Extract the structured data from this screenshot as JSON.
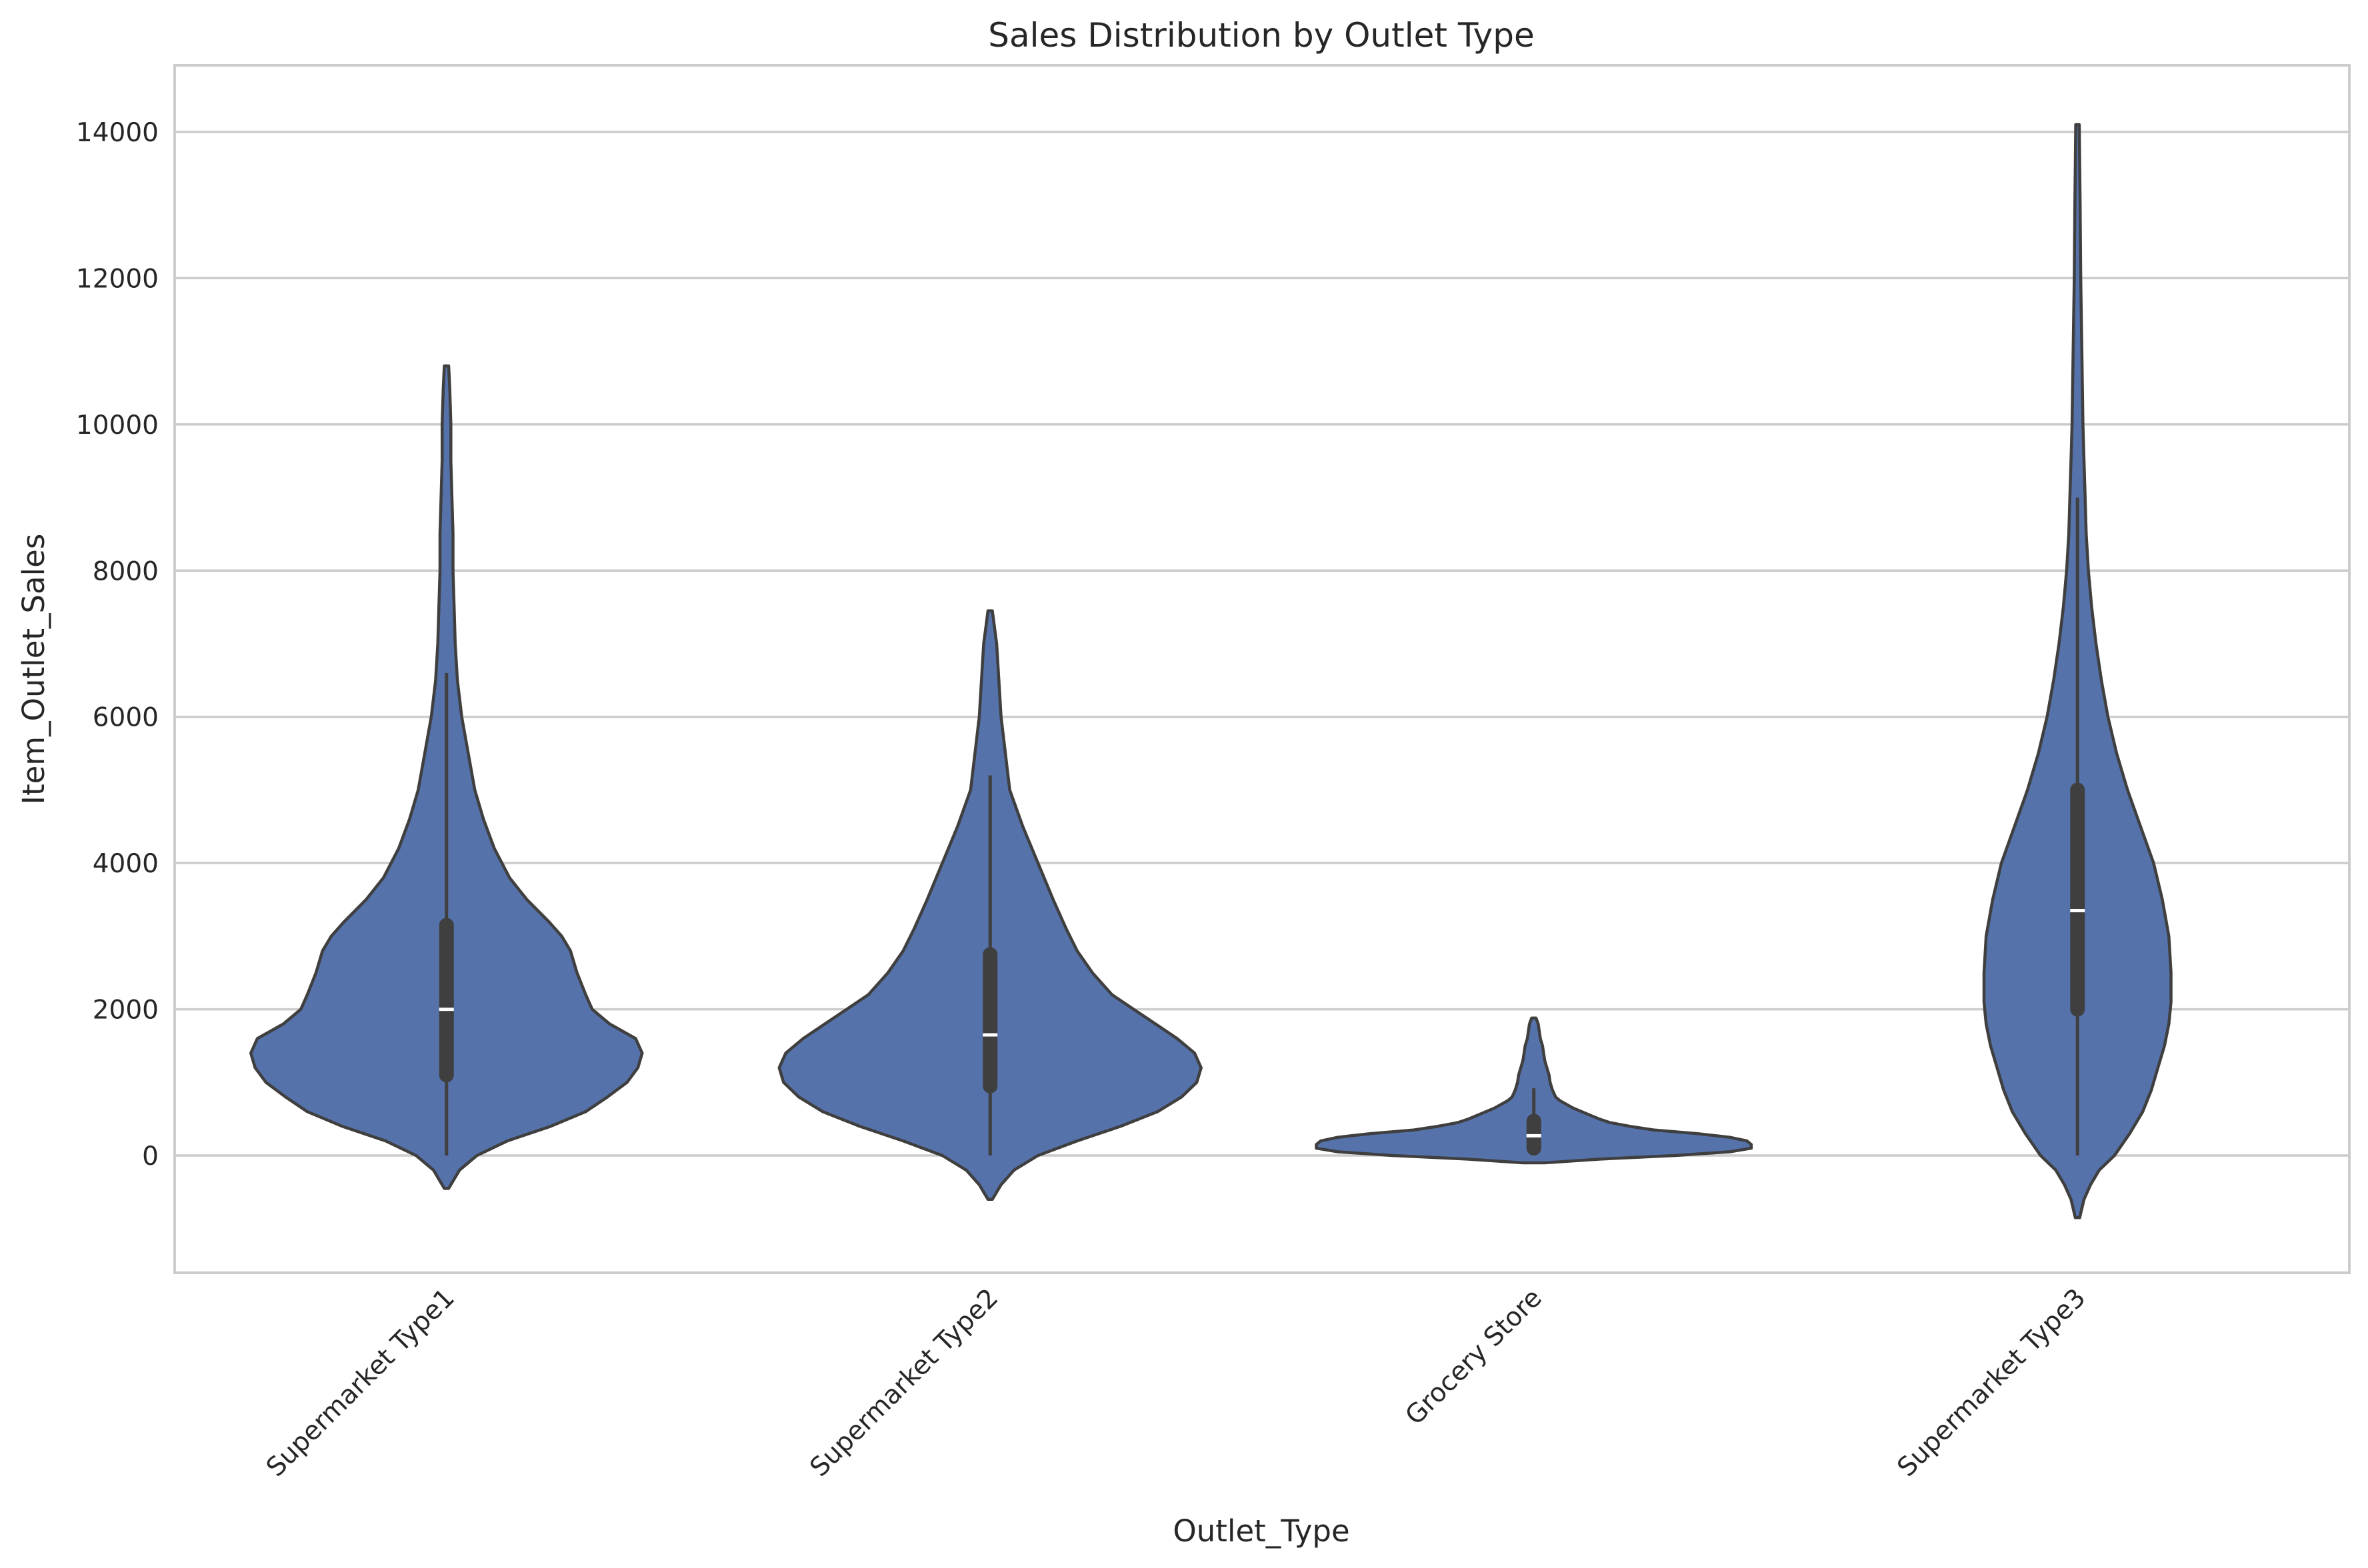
{
  "chart_data": {
    "type": "violin",
    "title": "Sales Distribution by Outlet Type",
    "xlabel": "Outlet_Type",
    "ylabel": "Item_Outlet_Sales",
    "categories": [
      "Supermarket Type1",
      "Supermarket Type2",
      "Grocery Store",
      "Supermarket Type3"
    ],
    "ylim": [
      -1600,
      15000
    ],
    "yticks": [
      0,
      2000,
      4000,
      6000,
      8000,
      10000,
      12000,
      14000
    ],
    "grid": "horizontal",
    "colors": {
      "fill": "#5572ab",
      "edge": "#3f3f3f",
      "box": "#3f3f3f",
      "median": "#ffffff",
      "grid": "#cccccc"
    },
    "violins": [
      {
        "category": "Supermarket Type1",
        "quartiles": [
          1100,
          2000,
          3150
        ],
        "whiskers": [
          0,
          6600
        ],
        "profile": [
          [
            -450,
            0.01
          ],
          [
            -200,
            0.06
          ],
          [
            0,
            0.14
          ],
          [
            200,
            0.28
          ],
          [
            400,
            0.48
          ],
          [
            600,
            0.64
          ],
          [
            800,
            0.74
          ],
          [
            1000,
            0.83
          ],
          [
            1200,
            0.88
          ],
          [
            1400,
            0.9
          ],
          [
            1600,
            0.87
          ],
          [
            1800,
            0.75
          ],
          [
            2000,
            0.67
          ],
          [
            2200,
            0.64
          ],
          [
            2500,
            0.6
          ],
          [
            2800,
            0.57
          ],
          [
            3000,
            0.53
          ],
          [
            3200,
            0.47
          ],
          [
            3500,
            0.37
          ],
          [
            3800,
            0.29
          ],
          [
            4200,
            0.22
          ],
          [
            4600,
            0.17
          ],
          [
            5000,
            0.13
          ],
          [
            5500,
            0.1
          ],
          [
            6000,
            0.07
          ],
          [
            6500,
            0.05
          ],
          [
            7000,
            0.04
          ],
          [
            7500,
            0.035
          ],
          [
            8000,
            0.03
          ],
          [
            8500,
            0.03
          ],
          [
            9000,
            0.025
          ],
          [
            9500,
            0.02
          ],
          [
            10000,
            0.02
          ],
          [
            10500,
            0.015
          ],
          [
            10800,
            0.01
          ]
        ]
      },
      {
        "category": "Supermarket Type2",
        "quartiles": [
          950,
          1650,
          2750
        ],
        "whiskers": [
          0,
          5200
        ],
        "profile": [
          [
            -600,
            0.01
          ],
          [
            -400,
            0.05
          ],
          [
            -200,
            0.11
          ],
          [
            0,
            0.22
          ],
          [
            200,
            0.4
          ],
          [
            400,
            0.6
          ],
          [
            600,
            0.77
          ],
          [
            800,
            0.88
          ],
          [
            1000,
            0.95
          ],
          [
            1200,
            0.97
          ],
          [
            1400,
            0.94
          ],
          [
            1600,
            0.86
          ],
          [
            1800,
            0.76
          ],
          [
            2000,
            0.66
          ],
          [
            2200,
            0.56
          ],
          [
            2500,
            0.47
          ],
          [
            2800,
            0.4
          ],
          [
            3100,
            0.35
          ],
          [
            3500,
            0.29
          ],
          [
            4000,
            0.22
          ],
          [
            4500,
            0.15
          ],
          [
            5000,
            0.09
          ],
          [
            5500,
            0.07
          ],
          [
            6000,
            0.05
          ],
          [
            6500,
            0.04
          ],
          [
            7000,
            0.03
          ],
          [
            7450,
            0.01
          ]
        ]
      },
      {
        "category": "Grocery Store",
        "quartiles": [
          100,
          270,
          470
        ],
        "whiskers": [
          0,
          920
        ],
        "profile": [
          [
            -100,
            0.05
          ],
          [
            -50,
            0.3
          ],
          [
            0,
            0.65
          ],
          [
            50,
            0.9
          ],
          [
            100,
            1.0
          ],
          [
            150,
            1.0
          ],
          [
            200,
            0.98
          ],
          [
            250,
            0.9
          ],
          [
            300,
            0.75
          ],
          [
            350,
            0.55
          ],
          [
            400,
            0.44
          ],
          [
            450,
            0.35
          ],
          [
            500,
            0.3
          ],
          [
            550,
            0.26
          ],
          [
            600,
            0.22
          ],
          [
            650,
            0.18
          ],
          [
            700,
            0.15
          ],
          [
            750,
            0.12
          ],
          [
            800,
            0.1
          ],
          [
            900,
            0.085
          ],
          [
            1000,
            0.075
          ],
          [
            1100,
            0.07
          ],
          [
            1200,
            0.06
          ],
          [
            1300,
            0.05
          ],
          [
            1400,
            0.045
          ],
          [
            1500,
            0.04
          ],
          [
            1600,
            0.03
          ],
          [
            1700,
            0.025
          ],
          [
            1800,
            0.02
          ],
          [
            1880,
            0.01
          ]
        ]
      },
      {
        "category": "Supermarket Type3",
        "quartiles": [
          2000,
          3350,
          5000
        ],
        "whiskers": [
          0,
          9000
        ],
        "profile": [
          [
            -850,
            0.01
          ],
          [
            -600,
            0.03
          ],
          [
            -400,
            0.06
          ],
          [
            -200,
            0.1
          ],
          [
            0,
            0.17
          ],
          [
            300,
            0.24
          ],
          [
            600,
            0.3
          ],
          [
            900,
            0.34
          ],
          [
            1200,
            0.37
          ],
          [
            1500,
            0.4
          ],
          [
            1800,
            0.42
          ],
          [
            2100,
            0.43
          ],
          [
            2500,
            0.43
          ],
          [
            3000,
            0.42
          ],
          [
            3500,
            0.39
          ],
          [
            4000,
            0.35
          ],
          [
            4500,
            0.29
          ],
          [
            5000,
            0.23
          ],
          [
            5500,
            0.18
          ],
          [
            6000,
            0.14
          ],
          [
            6500,
            0.11
          ],
          [
            7000,
            0.085
          ],
          [
            7500,
            0.065
          ],
          [
            8000,
            0.05
          ],
          [
            8500,
            0.04
          ],
          [
            9000,
            0.035
          ],
          [
            9500,
            0.03
          ],
          [
            10000,
            0.025
          ],
          [
            11000,
            0.02
          ],
          [
            12000,
            0.015
          ],
          [
            13000,
            0.012
          ],
          [
            14100,
            0.008
          ]
        ]
      }
    ]
  }
}
